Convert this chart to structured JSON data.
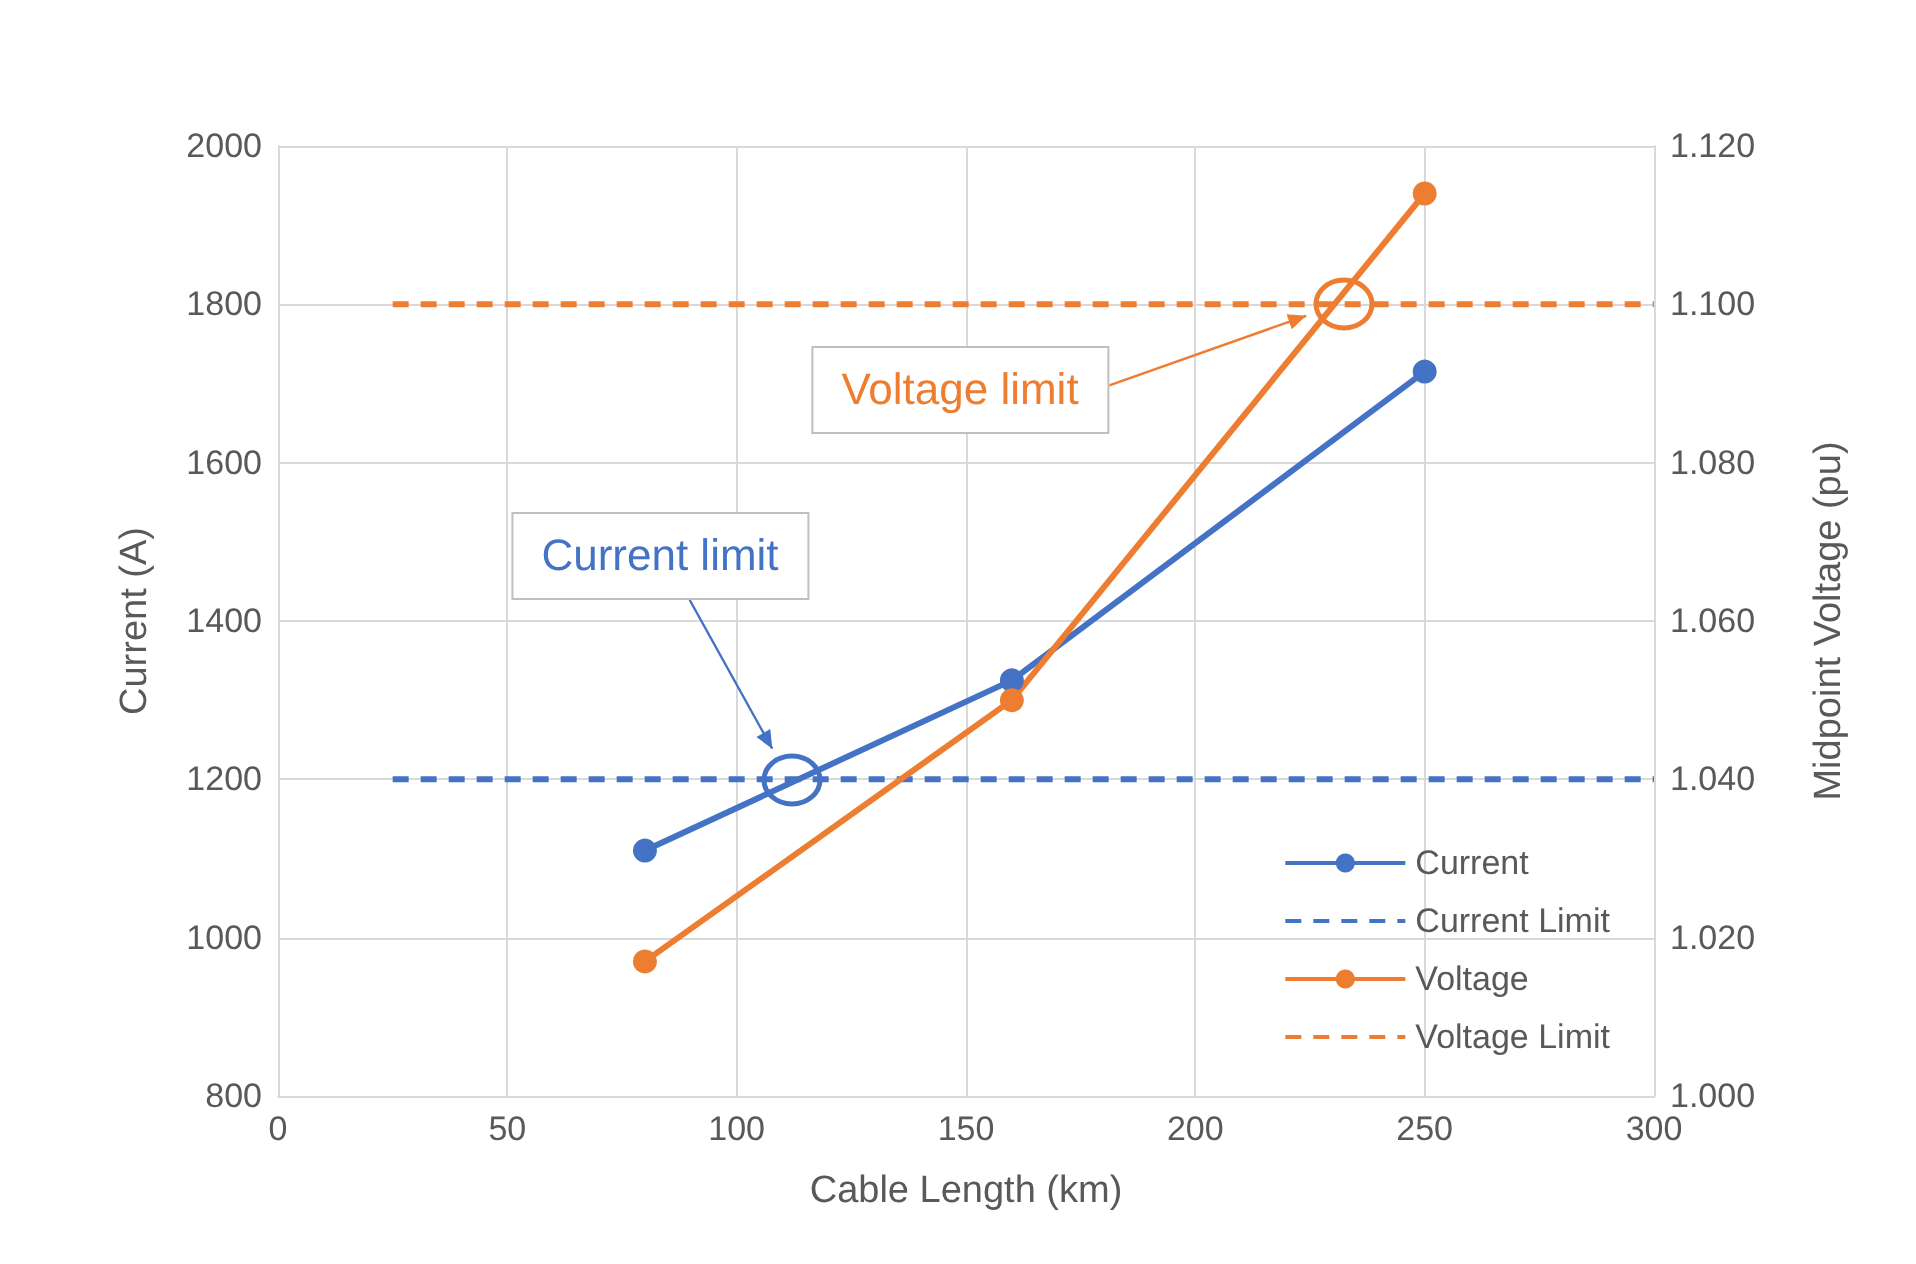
{
  "chart_data": {
    "type": "line",
    "xlabel": "Cable Length (km)",
    "ylabel": "Current (A)",
    "y2label": "Midpoint Voltage (pu)",
    "xlim": [
      0,
      300
    ],
    "xticks": [
      0,
      50,
      100,
      150,
      200,
      250,
      300
    ],
    "ylim": [
      800,
      2000
    ],
    "yticks": [
      800,
      1000,
      1200,
      1400,
      1600,
      1800,
      2000
    ],
    "y2lim": [
      1.0,
      1.12
    ],
    "y2ticks": [
      {
        "value": 1.0,
        "label": "1.000"
      },
      {
        "value": 1.02,
        "label": "1.020"
      },
      {
        "value": 1.04,
        "label": "1.040"
      },
      {
        "value": 1.06,
        "label": "1.060"
      },
      {
        "value": 1.08,
        "label": "1.080"
      },
      {
        "value": 1.1,
        "label": "1.100"
      },
      {
        "value": 1.12,
        "label": "1.120"
      }
    ],
    "grid": true,
    "legend": "bottom right",
    "series": [
      {
        "name": "Current",
        "color": "#4472c4",
        "x": [
          80,
          160,
          250
        ],
        "values": [
          1110,
          1325,
          1715
        ],
        "marker": "circle",
        "line_style": "solid"
      },
      {
        "name": "Current Limit",
        "color": "#4472c4",
        "x": [
          25,
          300
        ],
        "values": [
          1200,
          1200
        ],
        "marker": "none",
        "line_style": "dashed"
      },
      {
        "name": "Voltage",
        "color": "#ed7d31",
        "x": [
          80,
          160,
          250
        ],
        "values": [
          1.017,
          1.05,
          1.114
        ],
        "marker": "circle",
        "line_style": "solid",
        "axis": "y2"
      },
      {
        "name": "Voltage Limit",
        "color": "#ed7d31",
        "x": [
          25,
          300
        ],
        "values": [
          1.1,
          1.1
        ],
        "marker": "none",
        "line_style": "dashed",
        "axis": "y2"
      }
    ],
    "annotations": [
      "Current limit",
      "Voltage limit"
    ]
  }
}
